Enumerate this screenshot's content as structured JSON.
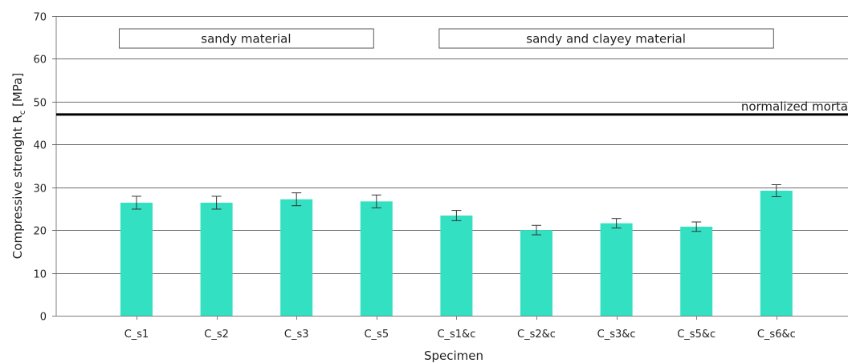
{
  "chart_data": {
    "type": "bar",
    "categories": [
      "C_s1",
      "C_s2",
      "C_s3",
      "C_s5",
      "C_s1&c",
      "C_s2&c",
      "C_s3&c",
      "C_s5&c",
      "C_s6&c"
    ],
    "values": [
      26.4,
      26.4,
      27.2,
      26.7,
      23.4,
      20.0,
      21.6,
      20.8,
      29.2
    ],
    "errors": [
      1.5,
      1.5,
      1.5,
      1.5,
      1.2,
      1.1,
      1.1,
      1.1,
      1.4
    ],
    "xlabel": "Specimen",
    "ylabel": "Compressive strenght R",
    "ylabel_subscript": "c",
    "ylabel_unit": " [MPa]",
    "ylim": [
      0,
      70
    ],
    "yticks": [
      0,
      10,
      20,
      30,
      40,
      50,
      60,
      70
    ],
    "grid": true,
    "bar_color": "#33e0c2",
    "reference_line": {
      "label": "normalized morta",
      "value": 47
    },
    "group_labels": [
      {
        "label": "sandy material",
        "first": 0,
        "last": 3
      },
      {
        "label": "sandy and clayey material",
        "first": 4,
        "last": 8
      }
    ]
  }
}
